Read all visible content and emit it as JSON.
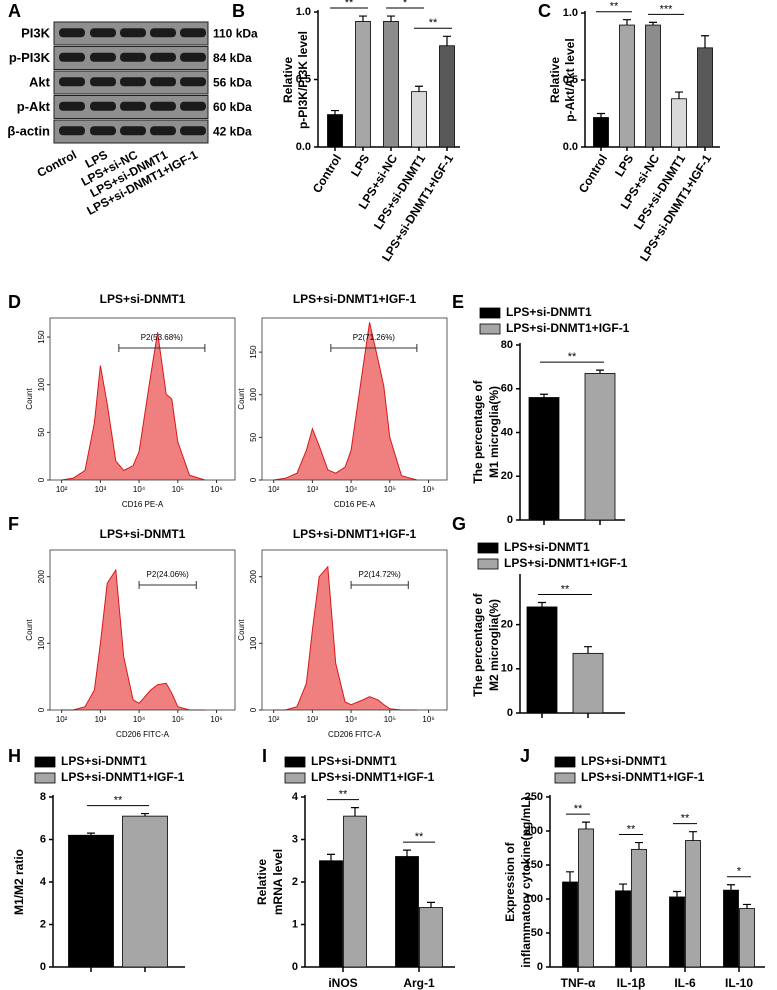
{
  "chart_data": [
    {
      "type": "blot",
      "panel": "A",
      "rows": [
        "PI3K",
        "p-PI3K",
        "Akt",
        "p-Akt",
        "β-actin"
      ],
      "sizes": [
        "110 kDa",
        "84 kDa",
        "56 kDa",
        "60 kDa",
        "42 kDa"
      ],
      "categories": [
        "Control",
        "LPS",
        "LPS+si-NC",
        "LPS+si-DNMT1",
        "LPS+si-DNMT1+IGF-1"
      ]
    },
    {
      "type": "bar",
      "panel": "B",
      "ylabel": [
        "Relative",
        "p-PI3K/PI3K level"
      ],
      "categories": [
        "Control",
        "LPS",
        "LPS+si-NC",
        "LPS+si-DNMT1",
        "LPS+si-DNMT1+IGF-1"
      ],
      "values": [
        0.24,
        0.93,
        0.93,
        0.41,
        0.75
      ],
      "errors": [
        0.03,
        0.04,
        0.04,
        0.04,
        0.07
      ],
      "colors": [
        "#000000",
        "#a6a6a6",
        "#8c8c8c",
        "#d9d9d9",
        "#595959"
      ],
      "ylim": [
        0,
        1
      ],
      "yticks": [
        {
          "value": 0,
          "label": "0.0"
        },
        0.5,
        {
          "value": 1,
          "label": "1.0"
        }
      ],
      "comparisons": [
        {
          "between": [
            0,
            1
          ],
          "label": "**"
        },
        {
          "between": [
            2,
            3
          ],
          "label": "*"
        },
        {
          "between": [
            3,
            4
          ],
          "label": "**"
        }
      ]
    },
    {
      "type": "bar",
      "panel": "C",
      "ylabel": [
        "Relative",
        "p-Akt/Akt level"
      ],
      "categories": [
        "Control",
        "LPS",
        "LPS+si-NC",
        "LPS+si-DNMT1",
        "LPS+si-DNMT1+IGF-1"
      ],
      "values": [
        0.22,
        0.91,
        0.91,
        0.36,
        0.74
      ],
      "errors": [
        0.03,
        0.04,
        0.02,
        0.05,
        0.09
      ],
      "colors": [
        "#000000",
        "#a6a6a6",
        "#8c8c8c",
        "#d9d9d9",
        "#595959"
      ],
      "ylim": [
        0,
        1
      ],
      "yticks": [
        {
          "value": 0,
          "label": "0.0"
        },
        0.5,
        {
          "value": 1,
          "label": "1.0"
        }
      ],
      "comparisons": [
        {
          "between": [
            0,
            1
          ],
          "label": "**"
        },
        {
          "between": [
            2,
            3
          ],
          "label": "***"
        }
      ]
    },
    {
      "type": "flow",
      "panel": "D",
      "title": "LPS+si-DNMT1",
      "xlabel": "CD16 PE-A",
      "ylabel": "Count",
      "xscale": "log",
      "xlim": [
        50,
        3000000
      ],
      "xticks": [
        {
          "value": 100,
          "label": "10²"
        },
        {
          "value": 1000,
          "label": "10³"
        },
        {
          "value": 10000,
          "label": "10⁴"
        },
        {
          "value": 100000,
          "label": "10⁵"
        },
        {
          "value": 1000000,
          "label": "10⁶"
        }
      ],
      "ylim": [
        0,
        170
      ],
      "yticks": [
        0,
        50,
        100,
        150
      ],
      "color": "#f08080",
      "x": [
        100,
        200,
        400,
        700,
        1000,
        1500,
        2500,
        4000,
        7000,
        10000,
        20000,
        30000,
        50000,
        70000,
        100000,
        200000,
        500000
      ],
      "values": [
        0,
        2,
        10,
        60,
        120,
        80,
        20,
        10,
        15,
        30,
        110,
        155,
        90,
        85,
        40,
        5,
        0
      ],
      "gate": {
        "label": "P2(53.68%)",
        "range": [
          3000,
          500000
        ]
      }
    },
    {
      "type": "flow",
      "title": "LPS+si-DNMT1+IGF-1",
      "xlabel": "CD16 PE-A",
      "ylabel": "Count",
      "xscale": "log",
      "xlim": [
        50,
        3000000
      ],
      "xticks": [
        {
          "value": 100,
          "label": "10²"
        },
        {
          "value": 1000,
          "label": "10³"
        },
        {
          "value": 10000,
          "label": "10⁴"
        },
        {
          "value": 100000,
          "label": "10⁵"
        },
        {
          "value": 1000000,
          "label": "10⁶"
        }
      ],
      "ylim": [
        0,
        190
      ],
      "yticks": [
        0,
        50,
        100,
        150
      ],
      "color": "#f08080",
      "x": [
        100,
        200,
        400,
        700,
        1000,
        1500,
        2500,
        4000,
        7000,
        10000,
        20000,
        30000,
        50000,
        70000,
        100000,
        200000,
        500000
      ],
      "values": [
        0,
        2,
        8,
        35,
        60,
        40,
        12,
        8,
        15,
        35,
        130,
        185,
        140,
        110,
        50,
        5,
        0
      ],
      "gate": {
        "label": "P2(71.26%)",
        "range": [
          3000,
          500000
        ]
      }
    },
    {
      "type": "bar",
      "panel": "E",
      "ylabel": [
        "The percentage of",
        "M1 microglia(%)"
      ],
      "series": [
        {
          "name": "LPS+si-DNMT1",
          "color": "#000000",
          "values": [
            56
          ],
          "errors": [
            1.5
          ]
        },
        {
          "name": "LPS+si-DNMT1+IGF-1",
          "color": "#a6a6a6",
          "values": [
            67
          ],
          "errors": [
            1.5
          ]
        }
      ],
      "ylim": [
        0,
        80
      ],
      "yticks": [
        0,
        20,
        40,
        60,
        80
      ],
      "significance": [
        "**"
      ]
    },
    {
      "type": "flow",
      "panel": "F",
      "title": "LPS+si-DNMT1",
      "xlabel": "CD206 FITC-A",
      "ylabel": "Count",
      "xscale": "log",
      "xlim": [
        50,
        3000000
      ],
      "xticks": [
        {
          "value": 100,
          "label": "10²"
        },
        {
          "value": 1000,
          "label": "10³"
        },
        {
          "value": 10000,
          "label": "10⁴"
        },
        {
          "value": 100000,
          "label": "10⁵"
        },
        {
          "value": 1000000,
          "label": "10⁶"
        }
      ],
      "ylim": [
        0,
        240
      ],
      "yticks": [
        0,
        100,
        200
      ],
      "color": "#f08080",
      "x": [
        100,
        200,
        400,
        700,
        1000,
        1500,
        2500,
        4000,
        7000,
        10000,
        20000,
        30000,
        50000,
        70000,
        100000,
        200000,
        500000
      ],
      "values": [
        0,
        0,
        5,
        30,
        100,
        190,
        210,
        80,
        15,
        10,
        30,
        38,
        40,
        25,
        5,
        0,
        0
      ],
      "gate": {
        "label": "P2(24.06%)",
        "range": [
          10000,
          300000
        ]
      }
    },
    {
      "type": "flow",
      "title": "LPS+si-DNMT1+IGF-1",
      "xlabel": "CD206 FITC-A",
      "ylabel": "Count",
      "xscale": "log",
      "xlim": [
        50,
        3000000
      ],
      "xticks": [
        {
          "value": 100,
          "label": "10²"
        },
        {
          "value": 1000,
          "label": "10³"
        },
        {
          "value": 10000,
          "label": "10⁴"
        },
        {
          "value": 100000,
          "label": "10⁵"
        },
        {
          "value": 1000000,
          "label": "10⁶"
        }
      ],
      "ylim": [
        0,
        240
      ],
      "yticks": [
        0,
        100,
        200
      ],
      "color": "#f08080",
      "x": [
        100,
        200,
        400,
        700,
        1000,
        1500,
        2500,
        4000,
        7000,
        10000,
        20000,
        30000,
        50000,
        70000,
        100000,
        200000,
        500000
      ],
      "values": [
        0,
        0,
        5,
        40,
        120,
        200,
        215,
        70,
        12,
        8,
        15,
        20,
        15,
        8,
        2,
        0,
        0
      ],
      "gate": {
        "label": "P2(14.72%)",
        "range": [
          10000,
          300000
        ]
      }
    },
    {
      "type": "bar",
      "panel": "G",
      "ylabel": [
        "The percentage of",
        "M2 microglia(%)"
      ],
      "series": [
        {
          "name": "LPS+si-DNMT1",
          "color": "#000000",
          "values": [
            24
          ],
          "errors": [
            1
          ]
        },
        {
          "name": "LPS+si-DNMT1+IGF-1",
          "color": "#a6a6a6",
          "values": [
            13.5
          ],
          "errors": [
            1.5
          ]
        }
      ],
      "ylim": [
        0,
        31
      ],
      "yticks": [
        0,
        10,
        20
      ],
      "significance": [
        "**"
      ]
    },
    {
      "type": "bar",
      "panel": "H",
      "ylabel": [
        "M1/M2 ratio"
      ],
      "series": [
        {
          "name": "LPS+si-DNMT1",
          "color": "#000000",
          "values": [
            6.2
          ],
          "errors": [
            0.1
          ]
        },
        {
          "name": "LPS+si-DNMT1+IGF-1",
          "color": "#a6a6a6",
          "values": [
            7.1
          ],
          "errors": [
            0.12
          ]
        }
      ],
      "ylim": [
        0,
        8
      ],
      "yticks": [
        0,
        2,
        4,
        6,
        8
      ],
      "significance": [
        "**"
      ]
    },
    {
      "type": "bar",
      "panel": "I",
      "ylabel": [
        "Relative",
        "mRNA level"
      ],
      "categories": [
        "iNOS",
        "Arg-1"
      ],
      "series": [
        {
          "name": "LPS+si-DNMT1",
          "color": "#000000",
          "values": [
            2.5,
            2.6
          ],
          "errors": [
            0.15,
            0.15
          ]
        },
        {
          "name": "LPS+si-DNMT1+IGF-1",
          "color": "#a6a6a6",
          "values": [
            3.55,
            1.4
          ],
          "errors": [
            0.2,
            0.12
          ]
        }
      ],
      "ylim": [
        0,
        4
      ],
      "yticks": [
        0,
        1,
        2,
        3,
        4
      ],
      "significance": [
        "**",
        "**"
      ]
    },
    {
      "type": "bar",
      "panel": "J",
      "ylabel": [
        "Expression of",
        "inflammatory cytokine(pg/mL)"
      ],
      "categories": [
        "TNF-α",
        "IL-1β",
        "IL-6",
        "IL-10"
      ],
      "series": [
        {
          "name": "LPS+si-DNMT1",
          "color": "#000000",
          "values": [
            125,
            112,
            103,
            113
          ],
          "errors": [
            15,
            10,
            8,
            8
          ]
        },
        {
          "name": "LPS+si-DNMT1+IGF-1",
          "color": "#a6a6a6",
          "values": [
            203,
            173,
            186,
            86
          ],
          "errors": [
            10,
            10,
            13,
            6
          ]
        }
      ],
      "ylim": [
        0,
        250
      ],
      "yticks": [
        0,
        50,
        100,
        150,
        200,
        250
      ],
      "significance": [
        "**",
        "**",
        "**",
        "*"
      ]
    }
  ]
}
